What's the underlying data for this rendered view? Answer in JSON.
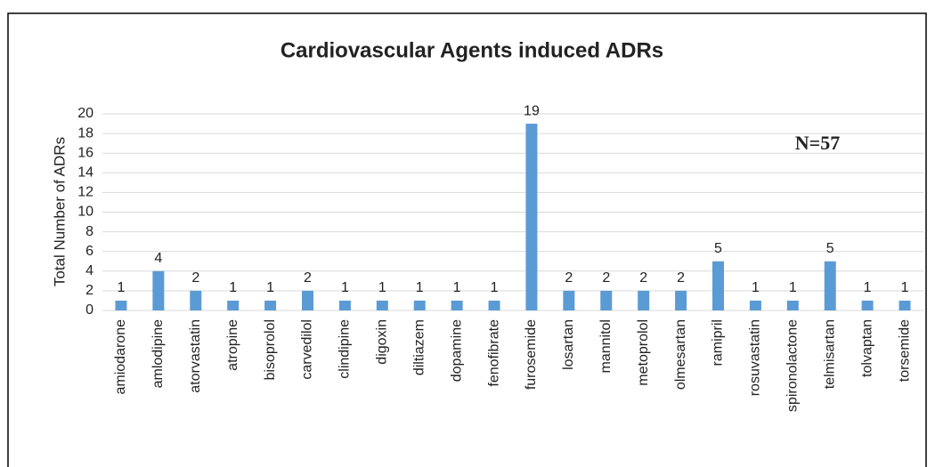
{
  "chart_data": {
    "type": "bar",
    "title": "Cardiovascular Agents induced ADRs",
    "y_label": "Total Number of ADRs",
    "annotation": "N=57",
    "categories": [
      "amiodarone",
      "amlodipine",
      "atorvastatin",
      "atropine",
      "bisoprolol",
      "carvedilol",
      "clindipine",
      "digoxin",
      "diltiazem",
      "dopamine",
      "fenofibrate",
      "furosemide",
      "losartan",
      "mannitol",
      "metoprolol",
      "olmesartan",
      "ramipril",
      "rosuvastatin",
      "spironolactone",
      "telmisartan",
      "tolvaptan",
      "torsemide"
    ],
    "values": [
      1,
      4,
      2,
      1,
      1,
      2,
      1,
      1,
      1,
      1,
      1,
      19,
      2,
      2,
      2,
      2,
      5,
      1,
      1,
      5,
      1,
      1
    ],
    "color": "#5b9bd5",
    "ylim": [
      0,
      20
    ],
    "yticks": [
      0,
      2,
      4,
      6,
      8,
      10,
      12,
      14,
      16,
      18,
      20
    ],
    "grid": true
  }
}
